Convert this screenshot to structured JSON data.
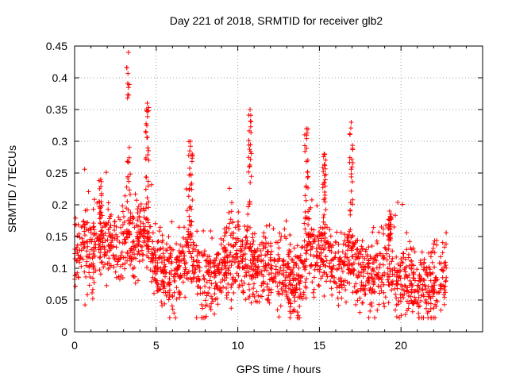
{
  "chart_data": {
    "type": "scatter",
    "title": "Day 221 of 2018, SRMTID for receiver glb2",
    "xlabel": "GPS time / hours",
    "ylabel": "SRMTID / TECUs",
    "xlim": [
      0,
      25.0
    ],
    "ylim": [
      0,
      0.45
    ],
    "xticks": [
      0,
      5,
      10,
      15,
      20
    ],
    "xtick_labels": [
      "0",
      "5",
      "10",
      "15",
      "20"
    ],
    "yticks": [
      0,
      0.05,
      0.1,
      0.15,
      0.2,
      0.25,
      0.3,
      0.35,
      0.4,
      0.45
    ],
    "ytick_labels": [
      "0",
      "0.05",
      "0.1",
      "0.15",
      "0.2",
      "0.25",
      "0.3",
      "0.35",
      "0.4",
      "0.45"
    ],
    "grid": true,
    "marker": "+",
    "color": "#ff0000",
    "series": [
      {
        "name": "SRMTID",
        "x_range_hours": [
          0,
          22.8
        ],
        "profile": [
          [
            0.0,
            0.13
          ],
          [
            0.5,
            0.13
          ],
          [
            1.0,
            0.12
          ],
          [
            1.5,
            0.13
          ],
          [
            2.0,
            0.14
          ],
          [
            2.5,
            0.13
          ],
          [
            3.0,
            0.14
          ],
          [
            3.3,
            0.16
          ],
          [
            3.6,
            0.13
          ],
          [
            4.0,
            0.15
          ],
          [
            4.4,
            0.16
          ],
          [
            4.8,
            0.11
          ],
          [
            5.5,
            0.09
          ],
          [
            6.0,
            0.09
          ],
          [
            6.5,
            0.1
          ],
          [
            7.0,
            0.13
          ],
          [
            7.4,
            0.09
          ],
          [
            8.0,
            0.08
          ],
          [
            9.0,
            0.09
          ],
          [
            9.6,
            0.11
          ],
          [
            10.2,
            0.12
          ],
          [
            10.7,
            0.11
          ],
          [
            11.3,
            0.1
          ],
          [
            12.0,
            0.1
          ],
          [
            12.5,
            0.1
          ],
          [
            13.0,
            0.09
          ],
          [
            13.5,
            0.07
          ],
          [
            14.0,
            0.09
          ],
          [
            14.4,
            0.13
          ],
          [
            15.0,
            0.12
          ],
          [
            15.5,
            0.12
          ],
          [
            16.0,
            0.1
          ],
          [
            16.5,
            0.1
          ],
          [
            17.0,
            0.12
          ],
          [
            17.5,
            0.09
          ],
          [
            18.0,
            0.09
          ],
          [
            18.5,
            0.09
          ],
          [
            19.0,
            0.1
          ],
          [
            19.5,
            0.09
          ],
          [
            20.0,
            0.08
          ],
          [
            20.5,
            0.08
          ],
          [
            21.0,
            0.07
          ],
          [
            22.0,
            0.07
          ],
          [
            22.8,
            0.09
          ]
        ],
        "peaks": [
          {
            "x": 3.3,
            "max": 0.44
          },
          {
            "x": 4.45,
            "max": 0.36
          },
          {
            "x": 7.1,
            "max": 0.3
          },
          {
            "x": 10.75,
            "max": 0.35
          },
          {
            "x": 14.2,
            "max": 0.32
          },
          {
            "x": 15.3,
            "max": 0.28
          },
          {
            "x": 16.95,
            "max": 0.33
          },
          {
            "x": 1.6,
            "max": 0.24
          },
          {
            "x": 19.3,
            "max": 0.19
          }
        ]
      }
    ]
  }
}
